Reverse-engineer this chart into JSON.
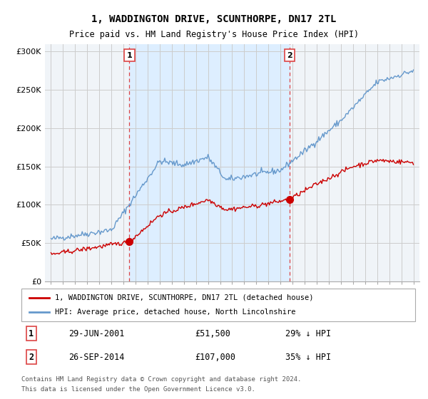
{
  "title": "1, WADDINGTON DRIVE, SCUNTHORPE, DN17 2TL",
  "subtitle": "Price paid vs. HM Land Registry's House Price Index (HPI)",
  "legend_line1": "1, WADDINGTON DRIVE, SCUNTHORPE, DN17 2TL (detached house)",
  "legend_line2": "HPI: Average price, detached house, North Lincolnshire",
  "footer1": "Contains HM Land Registry data © Crown copyright and database right 2024.",
  "footer2": "This data is licensed under the Open Government Licence v3.0.",
  "sale1_label": "1",
  "sale1_date": "29-JUN-2001",
  "sale1_price": "£51,500",
  "sale1_hpi": "29% ↓ HPI",
  "sale1_year": 2001.49,
  "sale1_value": 51500,
  "sale2_label": "2",
  "sale2_date": "26-SEP-2014",
  "sale2_price": "£107,000",
  "sale2_hpi": "35% ↓ HPI",
  "sale2_year": 2014.74,
  "sale2_value": 107000,
  "hpi_color": "#6699cc",
  "price_color": "#cc0000",
  "vline_color": "#dd4444",
  "shade_color": "#ddeeff",
  "background_color": "#f0f4f8",
  "plot_bg": "#f0f4f8",
  "ylim": [
    0,
    310000
  ],
  "xlim": [
    1994.5,
    2025.5
  ],
  "yticks": [
    0,
    50000,
    100000,
    150000,
    200000,
    250000,
    300000
  ],
  "ytick_labels": [
    "£0",
    "£50K",
    "£100K",
    "£150K",
    "£200K",
    "£250K",
    "£300K"
  ],
  "xticks": [
    1995,
    1996,
    1997,
    1998,
    1999,
    2000,
    2001,
    2002,
    2003,
    2004,
    2005,
    2006,
    2007,
    2008,
    2009,
    2010,
    2011,
    2012,
    2013,
    2014,
    2015,
    2016,
    2017,
    2018,
    2019,
    2020,
    2021,
    2022,
    2023,
    2024,
    2025
  ]
}
